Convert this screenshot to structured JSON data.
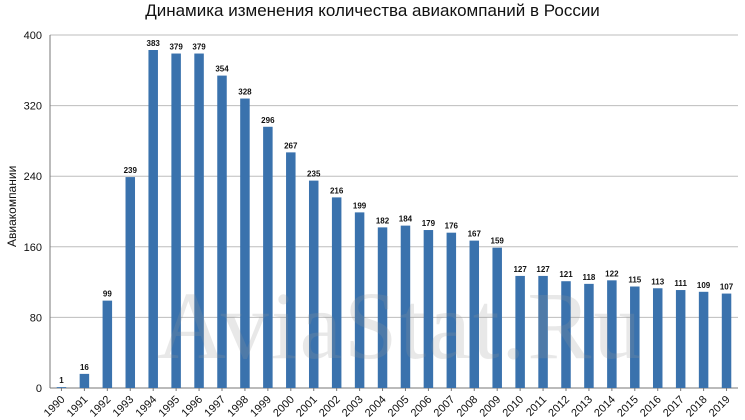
{
  "chart_data": {
    "type": "bar",
    "title": "Динамика изменения количества авиакомпаний в России",
    "xlabel": "",
    "ylabel": "Авиакомпании",
    "ylim": [
      0,
      400
    ],
    "yticks": [
      0,
      80,
      160,
      240,
      320,
      400
    ],
    "grid": true,
    "bar_color": "#3a72ad",
    "watermark": "AviaStat.Ru",
    "categories": [
      "1990",
      "1991",
      "1992",
      "1993",
      "1994",
      "1995",
      "1996",
      "1997",
      "1998",
      "1999",
      "2000",
      "2001",
      "2002",
      "2003",
      "2004",
      "2005",
      "2006",
      "2007",
      "2008",
      "2009",
      "2010",
      "2011",
      "2012",
      "2013",
      "2014",
      "2015",
      "2016",
      "2017",
      "2018",
      "2019"
    ],
    "values": [
      1,
      16,
      99,
      239,
      383,
      379,
      379,
      354,
      328,
      296,
      267,
      235,
      216,
      199,
      182,
      184,
      179,
      176,
      167,
      159,
      127,
      127,
      121,
      118,
      122,
      115,
      113,
      111,
      109,
      107
    ]
  }
}
